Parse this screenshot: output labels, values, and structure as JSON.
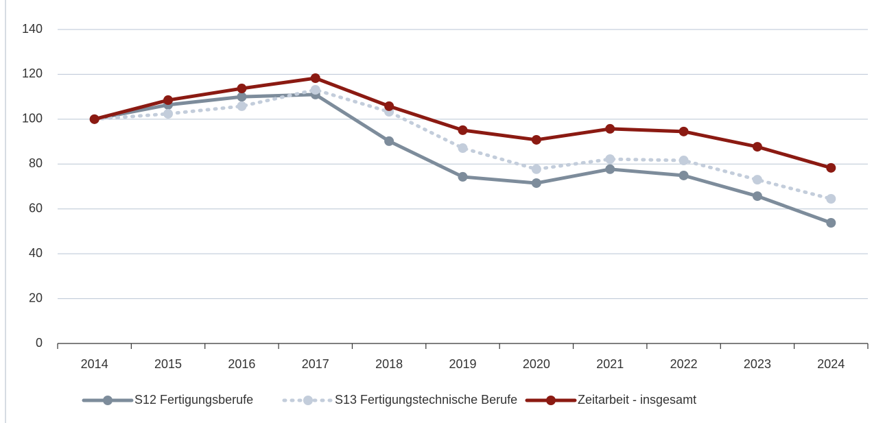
{
  "chart_data": {
    "type": "line",
    "categories": [
      "2014",
      "2015",
      "2016",
      "2017",
      "2018",
      "2019",
      "2020",
      "2021",
      "2022",
      "2023",
      "2024"
    ],
    "series": [
      {
        "name": "S12 Fertigungsberufe",
        "color": "#7d8c9b",
        "dash": "solid",
        "values": [
          100,
          106.4,
          110,
          111,
          90.2,
          74.3,
          71.5,
          77.7,
          74.9,
          65.7,
          53.8
        ]
      },
      {
        "name": "S13 Fertigungstechnische Berufe",
        "color": "#c3cddb",
        "dash": "dotted",
        "values": [
          100,
          102.4,
          105.8,
          113.1,
          103.3,
          87.1,
          77.7,
          82.2,
          81.6,
          73,
          64.5
        ]
      },
      {
        "name": "Zeitarbeit - insgesamt",
        "color": "#8b1a12",
        "dash": "solid",
        "values": [
          100,
          108.5,
          113.7,
          118.3,
          105.8,
          95.1,
          90.8,
          95.7,
          94.5,
          87.7,
          78.3
        ]
      }
    ],
    "ylim": [
      0,
      140
    ],
    "yticks": [
      0,
      20,
      40,
      60,
      80,
      100,
      120,
      140
    ],
    "grid": true,
    "legend": "bottom"
  }
}
